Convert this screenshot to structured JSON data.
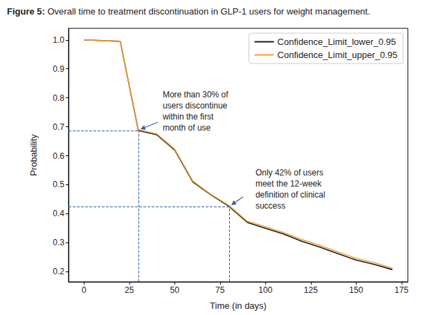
{
  "chart_data": {
    "type": "line",
    "title": "Figure 5: Overall time to treatment discontinuation in GLP-1 users for weight management.",
    "xlabel": "Time (in days)",
    "ylabel": "Probability",
    "x": [
      0,
      20,
      30,
      40,
      50,
      60,
      70,
      80,
      90,
      100,
      110,
      120,
      130,
      140,
      150,
      160,
      170
    ],
    "series": [
      {
        "name": "Confidence_Limit_lower_0.95",
        "color": "#111827",
        "values": [
          1.0,
          0.995,
          0.687,
          0.673,
          0.62,
          0.51,
          0.465,
          0.425,
          0.37,
          0.35,
          0.33,
          0.305,
          0.285,
          0.262,
          0.24,
          0.225,
          0.207
        ]
      },
      {
        "name": "Confidence_Limit_upper_0.95",
        "color": "#f0a030",
        "values": [
          1.0,
          0.995,
          0.69,
          0.676,
          0.623,
          0.513,
          0.467,
          0.428,
          0.374,
          0.355,
          0.335,
          0.311,
          0.291,
          0.268,
          0.246,
          0.231,
          0.212
        ]
      }
    ],
    "xlim": [
      -8.5,
      178.5
    ],
    "xticks": [
      0,
      25,
      50,
      75,
      100,
      125,
      150,
      175
    ],
    "ylim": [
      0.165,
      1.04
    ],
    "yticks": [
      0.2,
      0.3,
      0.4,
      0.5,
      0.6,
      0.7,
      0.8,
      0.9,
      {
        "value": 1,
        "label": "1.0"
      }
    ],
    "grid": false,
    "legend": "upper right",
    "annotations": [
      {
        "text": "More than 30% of\nusers discontinue\nwithin the first\nmonth of use",
        "x": 30,
        "y": 0.687
      },
      {
        "text": "Only 42% of users\nmeet the 12-week\ndefinition of clinical\nsuccess",
        "x": 80,
        "y": 0.425
      }
    ]
  }
}
